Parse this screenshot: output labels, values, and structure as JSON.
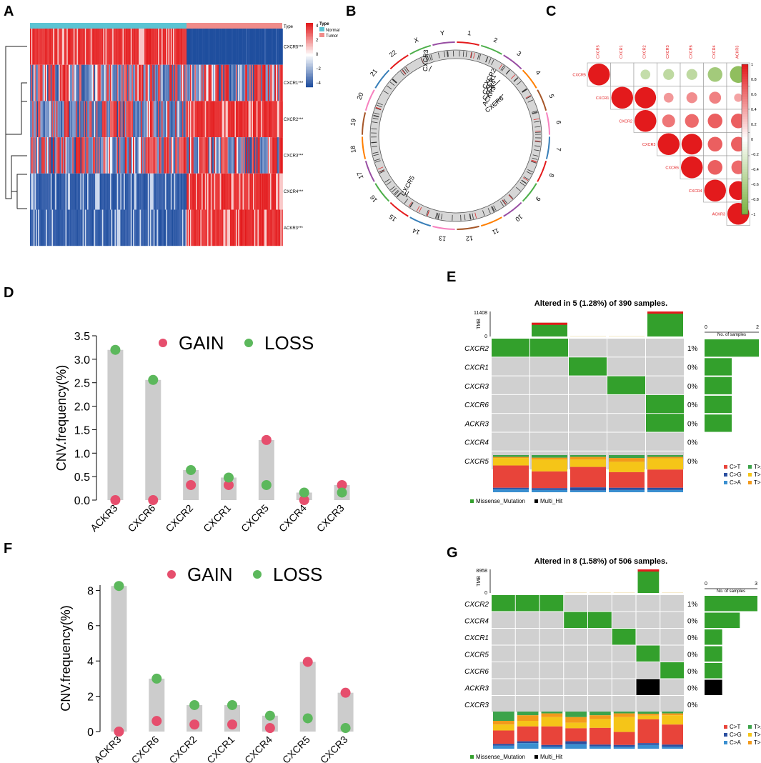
{
  "panels": {
    "A": "A",
    "B": "B",
    "C": "C",
    "D": "D",
    "E": "E",
    "F": "F",
    "G": "G"
  },
  "colors": {
    "normal": "#5BC4D3",
    "tumor": "#F08C8A",
    "heat_high": "#E31A1C",
    "heat_mid": "#FFFFFF",
    "heat_low": "#1F4E9E",
    "gain": "#E64E6D",
    "loss": "#5CB85C",
    "bar": "#CCCCCC",
    "missense": "#33A02C",
    "multihit": "#000000",
    "cell_bg": "#D0D0D0",
    "corr_pos": "#E31A1C",
    "corr_neg": "#7CB342",
    "CtoT": "#E8443A",
    "CtoG": "#2B4FA0",
    "CtoA": "#3A8FD0",
    "TtoA": "#3CA34A",
    "TtoC": "#F5C518",
    "TtoG": "#F39A1B"
  },
  "chart_data": [
    {
      "id": "A",
      "type": "heatmap",
      "legend_title": "Type",
      "col_annotation_label": "Type",
      "groups": [
        "Normal",
        "Tumor"
      ],
      "rows": [
        "CXCR5***",
        "CXCR1***",
        "CXCR2***",
        "CXCR3***",
        "CXCR4***",
        "ACKR3***"
      ],
      "row_pattern_normal": [
        "high",
        "mixed",
        "mixed",
        "mixed",
        "low",
        "low"
      ],
      "row_pattern_tumor": [
        "low",
        "mixed",
        "high",
        "mixed",
        "high",
        "high"
      ],
      "color_scale_ticks": [
        "4",
        "2",
        "0",
        "−2",
        "−4"
      ]
    },
    {
      "id": "B",
      "type": "circos",
      "chromosomes": [
        "1",
        "2",
        "3",
        "4",
        "5",
        "6",
        "7",
        "8",
        "9",
        "10",
        "11",
        "12",
        "13",
        "14",
        "15",
        "16",
        "17",
        "18",
        "19",
        "20",
        "21",
        "22",
        "X",
        "Y"
      ],
      "gene_labels": [
        {
          "gene": "CXCR3",
          "chrom": "X"
        },
        {
          "gene": "CXCR2",
          "chrom": "2"
        },
        {
          "gene": "CXCR1",
          "chrom": "2"
        },
        {
          "gene": "CXCR4",
          "chrom": "2"
        },
        {
          "gene": "ACKR3",
          "chrom": "2"
        },
        {
          "gene": "CXCR6",
          "chrom": "3"
        },
        {
          "gene": "CXCR5",
          "chrom": "11"
        }
      ]
    },
    {
      "id": "C",
      "type": "correlation",
      "genes": [
        "CXCR5",
        "CXCR1",
        "CXCR2",
        "CXCR3",
        "CXCR6",
        "CXCR4",
        "ACKR3"
      ],
      "matrix": [
        [
          1.0,
          0.0,
          -0.2,
          -0.25,
          -0.25,
          -0.45,
          -0.6
        ],
        [
          0.0,
          1.0,
          0.95,
          0.2,
          0.25,
          0.3,
          0.15
        ],
        [
          -0.2,
          0.95,
          1.0,
          0.35,
          0.4,
          0.45,
          0.45
        ],
        [
          -0.25,
          0.2,
          0.35,
          1.0,
          0.9,
          0.45,
          0.45
        ],
        [
          -0.25,
          0.25,
          0.4,
          0.9,
          1.0,
          0.45,
          0.4
        ],
        [
          -0.45,
          0.3,
          0.45,
          0.45,
          0.45,
          1.0,
          0.75
        ],
        [
          -0.6,
          0.15,
          0.45,
          0.45,
          0.4,
          0.75,
          1.0
        ]
      ],
      "scale_ticks": [
        "1",
        "0.8",
        "0.6",
        "0.4",
        "0.2",
        "0",
        "−0.2",
        "−0.4",
        "−0.6",
        "−0.8",
        "−1"
      ]
    },
    {
      "id": "D",
      "type": "scatter",
      "ylabel": "CNV.frequency(%)",
      "ylim": [
        0,
        3.5
      ],
      "yticks": [
        "0.0",
        "0.5",
        "1.0",
        "1.5",
        "2.0",
        "2.5",
        "3.0",
        "3.5"
      ],
      "legend": [
        "GAIN",
        "LOSS"
      ],
      "categories": [
        "ACKR3",
        "CXCR6",
        "CXCR2",
        "CXCR1",
        "CXCR5",
        "CXCR4",
        "CXCR3"
      ],
      "gain": [
        0.0,
        0.0,
        0.32,
        0.32,
        1.28,
        0.0,
        0.32
      ],
      "loss": [
        3.2,
        2.56,
        0.64,
        0.48,
        0.32,
        0.16,
        0.16
      ]
    },
    {
      "id": "E",
      "type": "oncoplot",
      "title": "Altered in 5 (1.28%) of 390 samples.",
      "tmb_label": "TMB",
      "tmb_max": "11408",
      "tmb_min": "0",
      "tmb": [
        0,
        0.55,
        0.02,
        0.02,
        1.0
      ],
      "side_axis_label": "No. of samples",
      "side_ticks": [
        "0",
        "2"
      ],
      "side_max": 2,
      "genes": [
        "CXCR2",
        "CXCR1",
        "CXCR3",
        "CXCR6",
        "ACKR3",
        "CXCR4",
        "CXCR5"
      ],
      "pct": [
        "1%",
        "0%",
        "0%",
        "0%",
        "0%",
        "0%",
        "0%"
      ],
      "side_counts": [
        2,
        1,
        1,
        1,
        1,
        0,
        0
      ],
      "n_samples": 5,
      "mutations": [
        [
          0,
          0,
          "m"
        ],
        [
          0,
          1,
          "m"
        ],
        [
          1,
          2,
          "m"
        ],
        [
          2,
          3,
          "m"
        ],
        [
          3,
          4,
          "m"
        ],
        [
          4,
          4,
          "m"
        ]
      ],
      "titv": [
        [
          0.04,
          0.08,
          0.05,
          0.03,
          0.6,
          0.2
        ],
        [
          0.05,
          0.06,
          0.07,
          0.05,
          0.45,
          0.32
        ],
        [
          0.08,
          0.05,
          0.05,
          0.07,
          0.55,
          0.2
        ],
        [
          0.06,
          0.06,
          0.08,
          0.1,
          0.42,
          0.28
        ],
        [
          0.06,
          0.06,
          0.05,
          0.04,
          0.49,
          0.3
        ]
      ],
      "titv_legend": [
        "C>T",
        "T>A",
        "C>G",
        "T>C",
        "C>A",
        "T>G"
      ],
      "mut_legend": [
        "Missense_Mutation",
        "Multi_Hit"
      ]
    },
    {
      "id": "F",
      "type": "scatter",
      "ylabel": "CNV.frequency(%)",
      "ylim": [
        0,
        8.3
      ],
      "yticks": [
        "0",
        "2",
        "4",
        "6",
        "8"
      ],
      "legend": [
        "GAIN",
        "LOSS"
      ],
      "categories": [
        "ACKR3",
        "CXCR6",
        "CXCR2",
        "CXCR1",
        "CXCR4",
        "CXCR5",
        "CXCR3"
      ],
      "gain": [
        0.0,
        0.6,
        0.4,
        0.4,
        0.2,
        3.95,
        2.2
      ],
      "loss": [
        8.25,
        3.0,
        1.5,
        1.5,
        0.9,
        0.75,
        0.2
      ]
    },
    {
      "id": "G",
      "type": "oncoplot",
      "title": "Altered in 8 (1.58%) of 506 samples.",
      "tmb_label": "TMB",
      "tmb_max": "8958",
      "tmb_min": "0",
      "tmb": [
        0,
        0,
        0,
        0.02,
        0.02,
        0.02,
        1.0,
        0.02
      ],
      "side_axis_label": "No. of samples",
      "side_ticks": [
        "0",
        "3"
      ],
      "side_max": 3,
      "genes": [
        "CXCR2",
        "CXCR4",
        "CXCR1",
        "CXCR5",
        "CXCR6",
        "ACKR3",
        "CXCR3"
      ],
      "pct": [
        "1%",
        "0%",
        "0%",
        "0%",
        "0%",
        "0%",
        "0%"
      ],
      "side_counts": [
        3,
        2,
        1,
        1,
        1,
        1,
        0
      ],
      "side_multi": [
        false,
        false,
        false,
        false,
        false,
        true,
        false
      ],
      "n_samples": 8,
      "mutations": [
        [
          0,
          0,
          "m"
        ],
        [
          0,
          1,
          "m"
        ],
        [
          0,
          2,
          "m"
        ],
        [
          1,
          3,
          "m"
        ],
        [
          1,
          4,
          "m"
        ],
        [
          2,
          5,
          "m"
        ],
        [
          3,
          6,
          "m"
        ],
        [
          4,
          7,
          "m"
        ],
        [
          5,
          6,
          "x"
        ]
      ],
      "titv": [
        [
          0.05,
          0.08,
          0.25,
          0.1,
          0.36,
          0.16
        ],
        [
          0.05,
          0.15,
          0.1,
          0.15,
          0.4,
          0.15
        ],
        [
          0.05,
          0.05,
          0.05,
          0.1,
          0.5,
          0.25
        ],
        [
          0.08,
          0.12,
          0.15,
          0.15,
          0.35,
          0.15
        ],
        [
          0.05,
          0.06,
          0.1,
          0.1,
          0.45,
          0.24
        ],
        [
          0.05,
          0.05,
          0.05,
          0.1,
          0.35,
          0.4
        ],
        [
          0.05,
          0.1,
          0.06,
          0.05,
          0.64,
          0.1
        ],
        [
          0.06,
          0.05,
          0.05,
          0.05,
          0.54,
          0.25
        ]
      ],
      "titv_legend": [
        "C>T",
        "T>A",
        "C>G",
        "T>C",
        "C>A",
        "T>G"
      ],
      "mut_legend": [
        "Missense_Mutation",
        "Multi_Hit"
      ]
    }
  ]
}
